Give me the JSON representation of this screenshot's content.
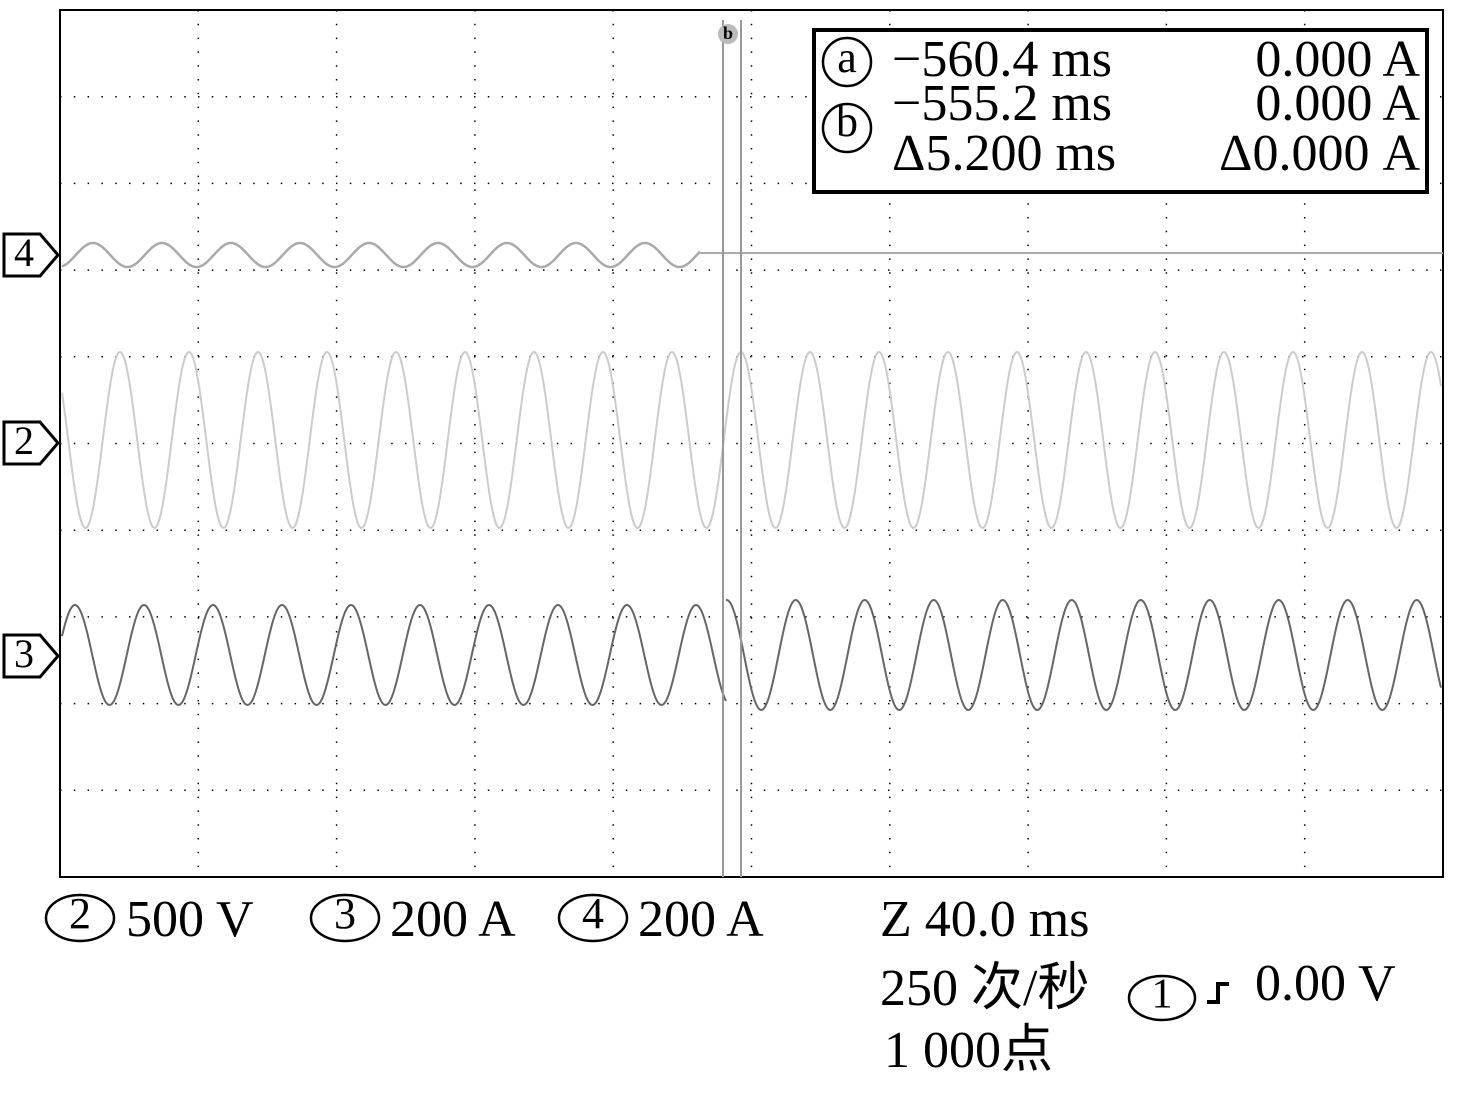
{
  "channel_markers": [
    "4",
    "2",
    "3"
  ],
  "cursor_label": "b",
  "readout": {
    "rows": [
      {
        "marker": "a",
        "time": "−560.4 ms",
        "value": "0.000 A"
      },
      {
        "marker": "b",
        "time": "−555.2 ms",
        "value": "0.000 A"
      },
      {
        "time": "Δ5.200 ms",
        "value": "Δ0.000 A"
      }
    ]
  },
  "footer": {
    "channels": [
      {
        "id": "2",
        "scale": "500 V"
      },
      {
        "id": "3",
        "scale": "200 A"
      },
      {
        "id": "4",
        "scale": "200 A"
      }
    ],
    "zoom": "Z 40.0 ms",
    "rate": "250 次/秒",
    "trigger_channel": "1",
    "trigger_level": "0.00 V",
    "points": "1 000点"
  }
}
